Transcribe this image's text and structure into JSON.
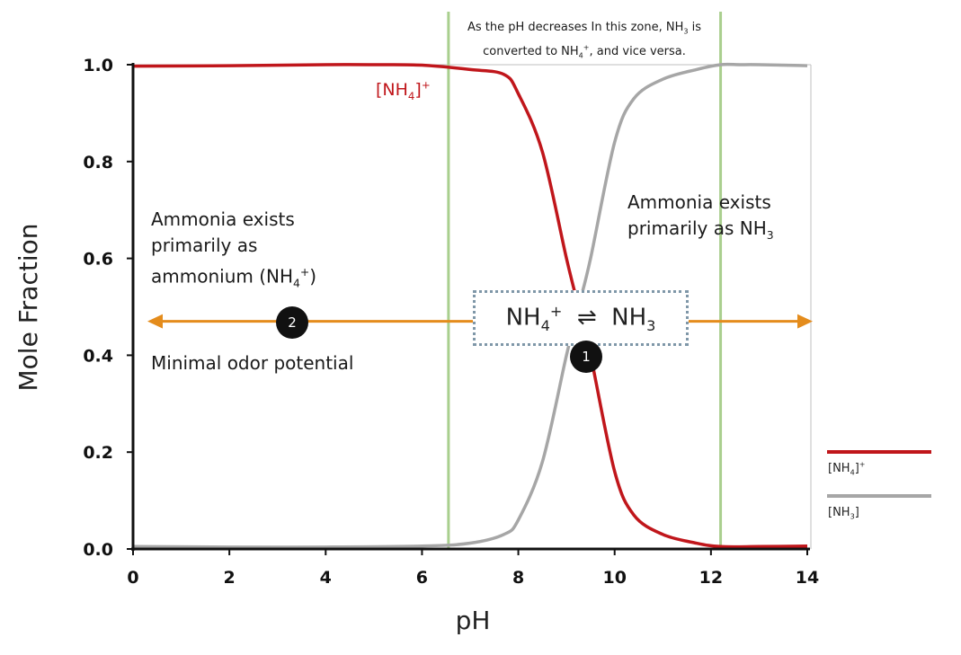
{
  "chart_data": {
    "type": "line",
    "xlabel": "pH",
    "ylabel": "Mole Fraction",
    "xlim": [
      0,
      14
    ],
    "ylim": [
      0,
      1.0
    ],
    "xticks": [
      "0",
      "2",
      "4",
      "6",
      "8",
      "10",
      "12",
      "14"
    ],
    "yticks": [
      "0.0",
      "0.2",
      "0.4",
      "0.6",
      "0.8",
      "1.0"
    ],
    "grid": false,
    "legend_position": "right",
    "series": [
      {
        "name": "[NH4]+",
        "color": "#c0161b",
        "x": [
          0,
          2,
          4,
          5,
          6,
          7,
          7.7,
          8,
          8.5,
          9,
          9.25,
          9.5,
          10,
          10.4,
          11,
          11.7,
          12.2,
          13,
          14
        ],
        "y": [
          0.997,
          0.998,
          1.0,
          1.0,
          0.999,
          0.99,
          0.98,
          0.94,
          0.82,
          0.6,
          0.5,
          0.4,
          0.16,
          0.07,
          0.03,
          0.012,
          0.005,
          0.005,
          0.006
        ]
      },
      {
        "name": "[NH3]",
        "color": "#a6a6a6",
        "x": [
          0,
          2,
          4,
          6,
          7,
          7.7,
          8,
          8.5,
          9,
          9.25,
          9.5,
          10,
          10.4,
          11,
          11.7,
          12.2,
          12.6,
          13,
          14
        ],
        "y": [
          0.005,
          0.004,
          0.004,
          0.006,
          0.012,
          0.03,
          0.06,
          0.18,
          0.4,
          0.5,
          0.6,
          0.84,
          0.93,
          0.97,
          0.99,
          1.0,
          1.0,
          1.0,
          0.998
        ]
      }
    ],
    "reference_lines_x": [
      6.55,
      12.2
    ],
    "reference_line_color": "#a9cf8e",
    "arrow_y": 0.47,
    "arrow_color": "#e48c1c"
  },
  "annotations": {
    "top_note_l1": "As the pH decreases In this zone, NH3 is",
    "top_note_l2": "converted to NH4+, and vice versa.",
    "left_l1": "Ammonia exists",
    "left_l2": "primarily as",
    "left_l3_pre": "ammonium (NH",
    "left_l3_sub": "4",
    "left_l3_sup": "+",
    "left_l3_post": ")",
    "right_l1": "Ammonia exists",
    "right_l2_pre": "primarily as NH",
    "right_l2_sub": "3",
    "odor": "Minimal odor potential",
    "curve_label": "[NH4]+",
    "equation": "NH4+ ⇌ NH3",
    "marker1": "1",
    "marker2": "2"
  },
  "legend": [
    {
      "label": "[NH4]+",
      "color": "#c0161b"
    },
    {
      "label": "[NH3]",
      "color": "#a6a6a6"
    }
  ]
}
